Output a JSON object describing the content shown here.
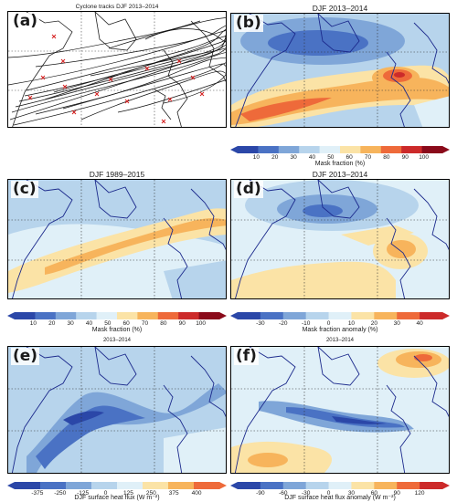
{
  "panels": {
    "a": {
      "label": "(a)",
      "title": "Cyclone tracks DJF 2013–2014"
    },
    "b": {
      "label": "(b)",
      "title": "DJF 2013–2014"
    },
    "c": {
      "label": "(c)",
      "title": "DJF 1989–2015"
    },
    "d": {
      "label": "(d)",
      "title": "DJF 2013–2014"
    },
    "e": {
      "label": "(e)",
      "title": "2013–2014"
    },
    "f": {
      "label": "(f)",
      "title": "2013–2014"
    }
  },
  "colorbars": {
    "mask": {
      "label": "Mask fraction (%)",
      "ticks": [
        "10",
        "20",
        "30",
        "40",
        "50",
        "60",
        "70",
        "80",
        "90",
        "100"
      ],
      "colors": [
        "#2b47a8",
        "#4a72c4",
        "#7fa6d8",
        "#b7d4ec",
        "#e0f0f8",
        "#fbe3a6",
        "#f7b45c",
        "#ee6a3a",
        "#cc2a2a",
        "#8a0a1a"
      ]
    },
    "anom": {
      "label": "Mask fraction anomaly (%)",
      "ticks": [
        "-30",
        "-20",
        "-10",
        "0",
        "10",
        "20",
        "30",
        "40"
      ],
      "colors": [
        "#2b47a8",
        "#4a72c4",
        "#7fa6d8",
        "#b7d4ec",
        "#e0f0f8",
        "#fbe3a6",
        "#f7b45c",
        "#ee6a3a",
        "#cc2a2a"
      ]
    },
    "flux": {
      "label": "DJF surface heat flux (W m⁻²)",
      "ticks": [
        "-375",
        "-250",
        "-125",
        "0",
        "125",
        "250",
        "375",
        "400"
      ],
      "colors": [
        "#2b47a8",
        "#4a72c4",
        "#7fa6d8",
        "#b7d4ec",
        "#e0f0f8",
        "#fbe3a6",
        "#f7b45c",
        "#ee6a3a"
      ]
    },
    "fluxanom": {
      "label": "DJF surface heat flux anomaly (W m⁻²)",
      "ticks": [
        "-90",
        "-60",
        "-30",
        "0",
        "30",
        "60",
        "90",
        "120"
      ],
      "colors": [
        "#2b47a8",
        "#4a72c4",
        "#7fa6d8",
        "#b7d4ec",
        "#e0f0f8",
        "#fbe3a6",
        "#f7b45c",
        "#ee6a3a",
        "#cc2a2a"
      ]
    }
  }
}
